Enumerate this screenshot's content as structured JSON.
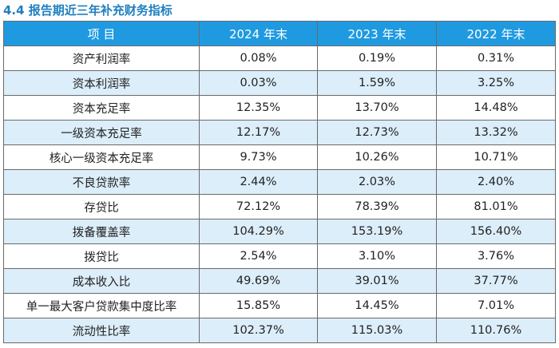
{
  "title": "4.4 报告期近三年补充财务指标",
  "table": {
    "headers": [
      "项  目",
      "2024 年末",
      "2023 年末",
      "2022 年末"
    ],
    "rows": [
      [
        "资产利润率",
        "0.08%",
        "0.19%",
        "0.31%"
      ],
      [
        "资本利润率",
        "0.03%",
        "1.59%",
        "3.25%"
      ],
      [
        "资本充足率",
        "12.35%",
        "13.70%",
        "14.48%"
      ],
      [
        "一级资本充足率",
        "12.17%",
        "12.73%",
        "13.32%"
      ],
      [
        "核心一级资本充足率",
        "9.73%",
        "10.26%",
        "10.71%"
      ],
      [
        "不良贷款率",
        "2.44%",
        "2.03%",
        "2.40%"
      ],
      [
        "存贷比",
        "72.12%",
        "78.39%",
        "81.01%"
      ],
      [
        "拨备覆盖率",
        "104.29%",
        "153.19%",
        "156.40%"
      ],
      [
        "拨贷比",
        "2.54%",
        "3.10%",
        "3.76%"
      ],
      [
        "成本收入比",
        "49.69%",
        "39.01%",
        "37.77%"
      ],
      [
        "单一最大客户贷款集中度比率",
        "15.85%",
        "14.45%",
        "7.01%"
      ],
      [
        "流动性比率",
        "102.37%",
        "115.03%",
        "110.76%"
      ]
    ]
  }
}
